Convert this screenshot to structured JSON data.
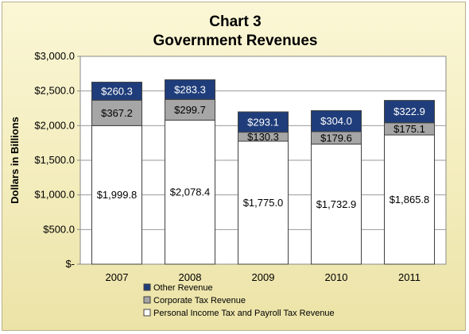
{
  "chart_data": {
    "type": "bar",
    "stacked": true,
    "title": "Chart 3",
    "subtitle": "Government Revenues",
    "xlabel": "",
    "ylabel": "Dollars in Billions",
    "ylim": [
      0,
      3000
    ],
    "yticks": [
      "$-",
      "$500.0",
      "$1,000.0",
      "$1,500.0",
      "$2,000.0",
      "$2,500.0",
      "$3,000.0"
    ],
    "ytick_values": [
      0,
      500,
      1000,
      1500,
      2000,
      2500,
      3000
    ],
    "grid": true,
    "legend_position": "bottom",
    "categories": [
      "2007",
      "2008",
      "2009",
      "2010",
      "2011"
    ],
    "series": [
      {
        "name": "Personal Income Tax and Payroll Tax Revenue",
        "values": [
          1999.8,
          2078.4,
          1775.0,
          1732.9,
          1865.8
        ],
        "labels": [
          "$1,999.8",
          "$2,078.4",
          "$1,775.0",
          "$1,732.9",
          "$1,865.8"
        ],
        "color": "#ffffff",
        "label_color": "#000000"
      },
      {
        "name": "Corporate Tax Revenue",
        "values": [
          367.2,
          299.7,
          130.3,
          179.6,
          175.1
        ],
        "labels": [
          "$367.2",
          "$299.7",
          "$130.3",
          "$179.6",
          "$175.1"
        ],
        "color": "#a6a6a6",
        "label_color": "#000000"
      },
      {
        "name": "Other Revenue",
        "values": [
          260.3,
          283.3,
          293.1,
          304.0,
          322.9
        ],
        "labels": [
          "$260.3",
          "$283.3",
          "$293.1",
          "$304.0",
          "$322.9"
        ],
        "color": "#1f3d7a",
        "label_color": "#ffffff"
      }
    ],
    "legend_order": [
      2,
      1,
      0
    ]
  }
}
